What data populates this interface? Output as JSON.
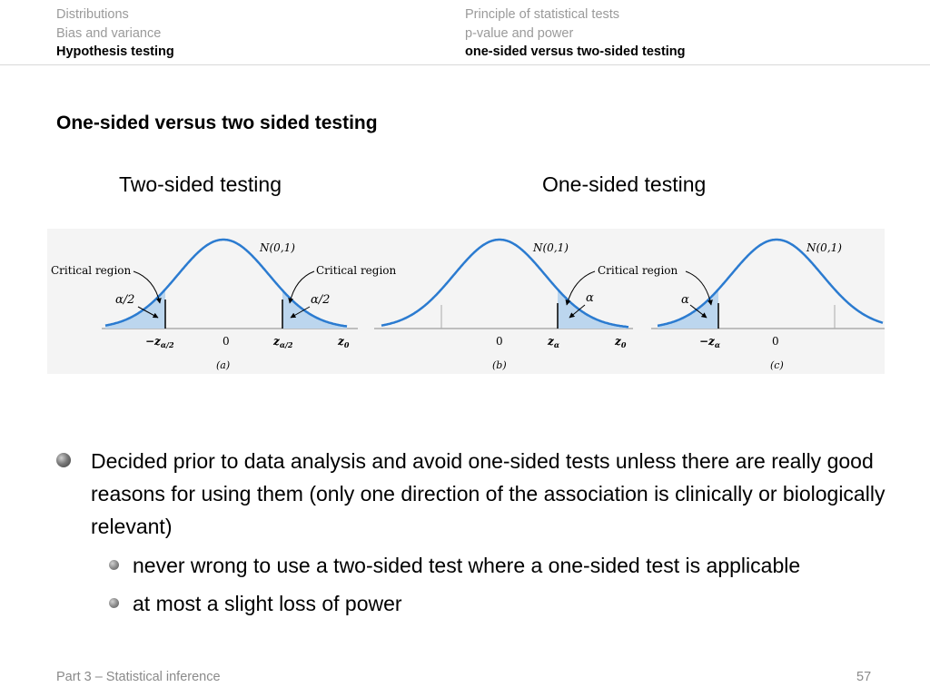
{
  "nav": {
    "left": [
      "Distributions",
      "Bias and variance",
      "Hypothesis testing"
    ],
    "right": [
      "Principle of statistical tests",
      "p-value and power",
      "one-sided versus two-sided testing"
    ]
  },
  "title": "One-sided versus two sided testing",
  "figure": {
    "label_two_sided": "Two-sided testing",
    "label_one_sided": "One-sided testing",
    "dist": "N(0,1)",
    "critical_region": "Critical region",
    "alpha_half": "α/2",
    "alpha": "α",
    "neg_z_half": "−z",
    "z_half": "z",
    "sub_half": "α/2",
    "sub_alpha": "α",
    "zero": "0",
    "z0": "z",
    "sub_0": "0",
    "caption_a": "(a)",
    "caption_b": "(b)",
    "caption_c": "(c)",
    "colors": {
      "curve": "#2b7bd0",
      "shade": "#bcd6ee"
    }
  },
  "bullets": {
    "main": "Decided prior to data analysis and avoid one-sided tests unless there are really good reasons for using them (only one direction of the association is clinically or biologically relevant)",
    "sub": [
      "never wrong to use a two-sided test where a one-sided test is applicable",
      "at most a slight loss of power"
    ]
  },
  "footer": {
    "left": "Part 3 – Statistical inference",
    "page": "57"
  }
}
